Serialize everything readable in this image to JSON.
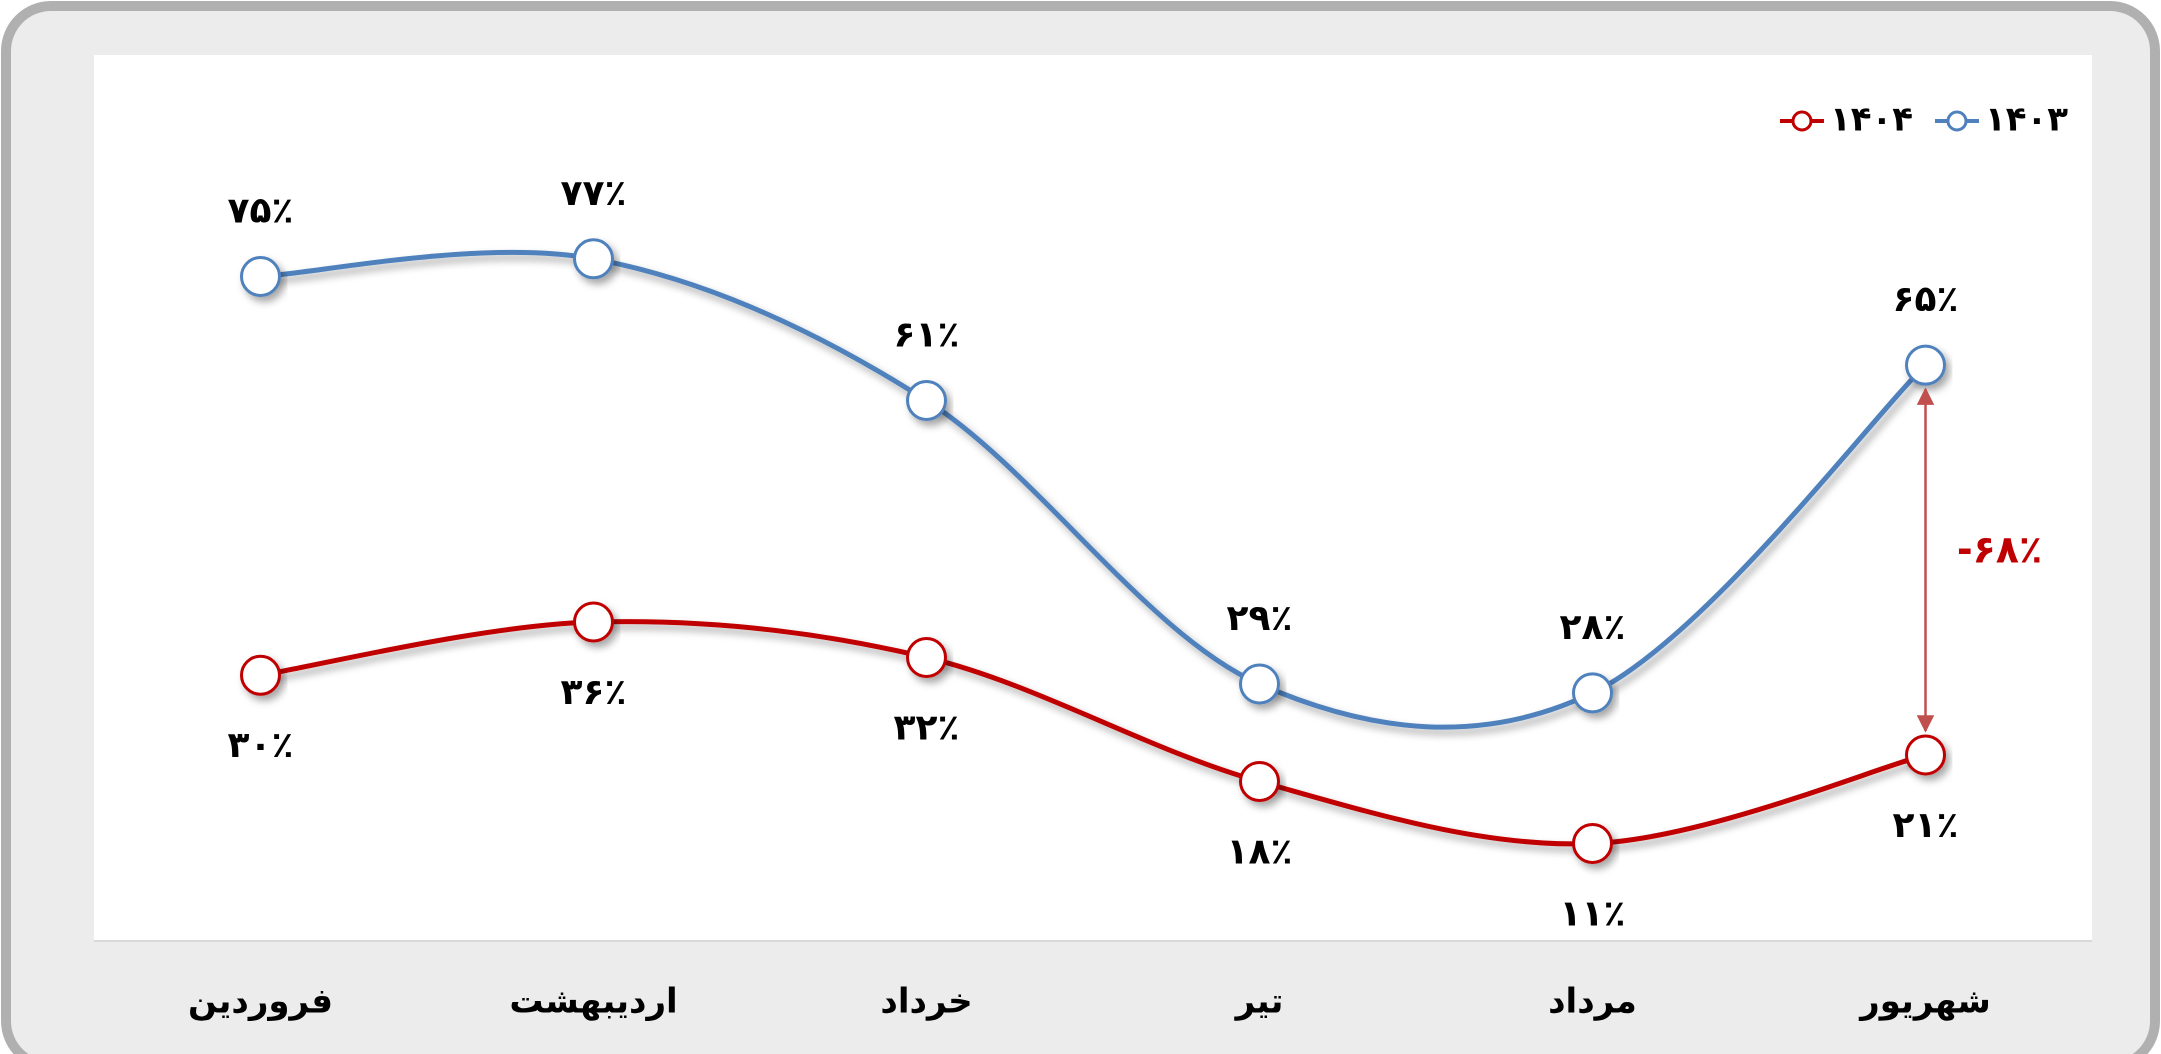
{
  "chart_data": {
    "type": "line",
    "categories": [
      "فروردین",
      "اردیبهشت",
      "خرداد",
      "تیر",
      "مرداد",
      "شهریور"
    ],
    "series": [
      {
        "name": "۱۴۰۳",
        "color": "#4f81bd",
        "values": [
          75,
          77,
          61,
          29,
          28,
          65
        ],
        "value_labels": [
          "۷۵٪",
          "۷۷٪",
          "۶۱٪",
          "۲۹٪",
          "۲۸٪",
          "۶۵٪"
        ]
      },
      {
        "name": "۱۴۰۴",
        "color": "#c00000",
        "values": [
          30,
          36,
          32,
          18,
          11,
          21
        ],
        "value_labels": [
          "۳۰٪",
          "۳۶٪",
          "۳۲٪",
          "۱۸٪",
          "۱۱٪",
          "۲۱٪"
        ]
      }
    ],
    "ylim": [
      0,
      100
    ],
    "annotation": "-۶۸٪",
    "legend": "top-right"
  }
}
